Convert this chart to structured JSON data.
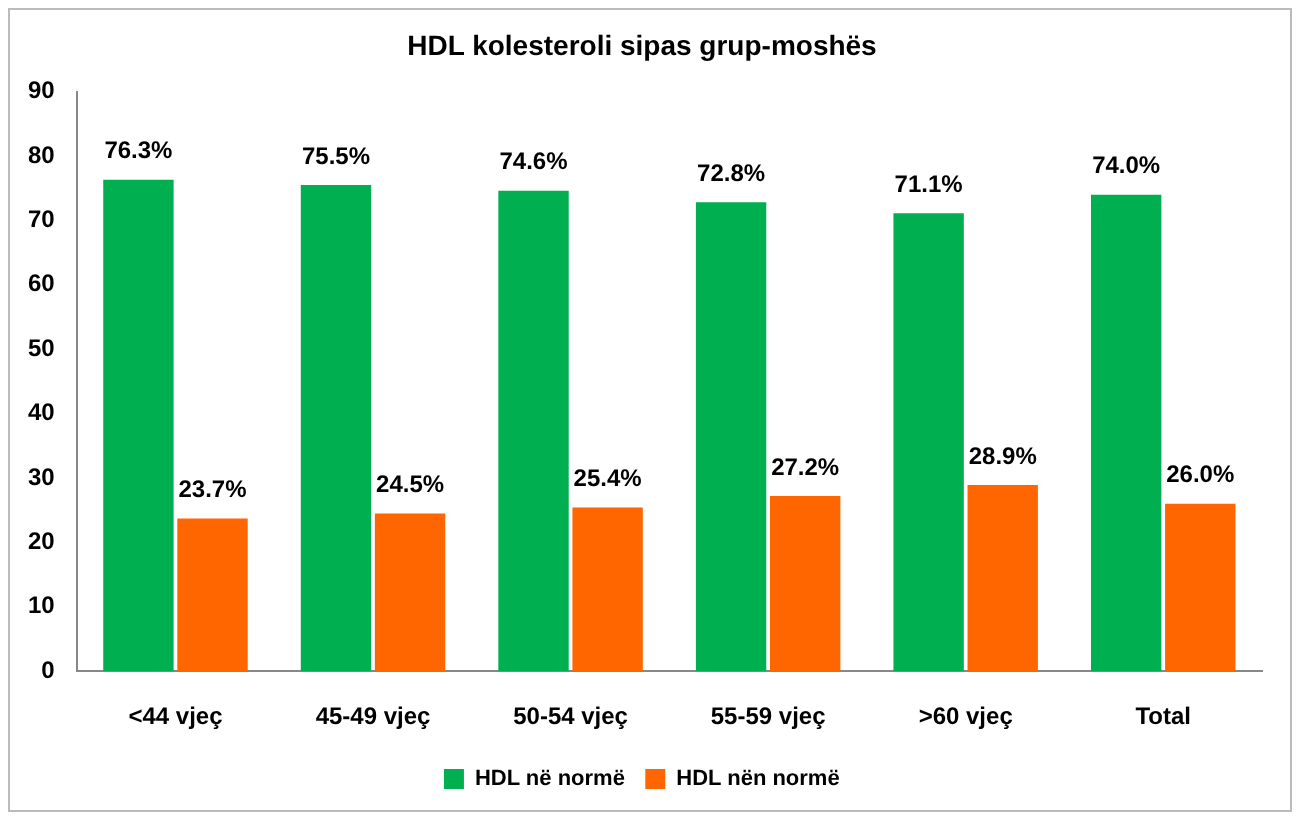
{
  "chart_data": {
    "type": "bar",
    "title": "HDL kolesteroli sipas grup-moshës",
    "categories": [
      "<44 vjeç",
      "45-49 vjeç",
      "50-54 vjeç",
      "55-59 vjeç",
      ">60 vjeç",
      "Total"
    ],
    "series": [
      {
        "name": "HDL në normë",
        "color": "#00b050",
        "values": [
          76.3,
          75.5,
          74.6,
          72.8,
          71.1,
          74.0
        ],
        "value_labels": [
          "76.3%",
          "75.5%",
          "74.6%",
          "72.8%",
          "71.1%",
          "74.0%"
        ]
      },
      {
        "name": "HDL nën normë",
        "color": "#ff6600",
        "values": [
          23.7,
          24.5,
          25.4,
          27.2,
          28.9,
          26.0
        ],
        "value_labels": [
          "23.7%",
          "24.5%",
          "25.4%",
          "27.2%",
          "28.9%",
          "26.0%"
        ]
      }
    ],
    "ylim": [
      0,
      90
    ],
    "yticks": [
      0,
      10,
      20,
      30,
      40,
      50,
      60,
      70,
      80,
      90
    ],
    "grid": false,
    "legend": "bottom"
  }
}
